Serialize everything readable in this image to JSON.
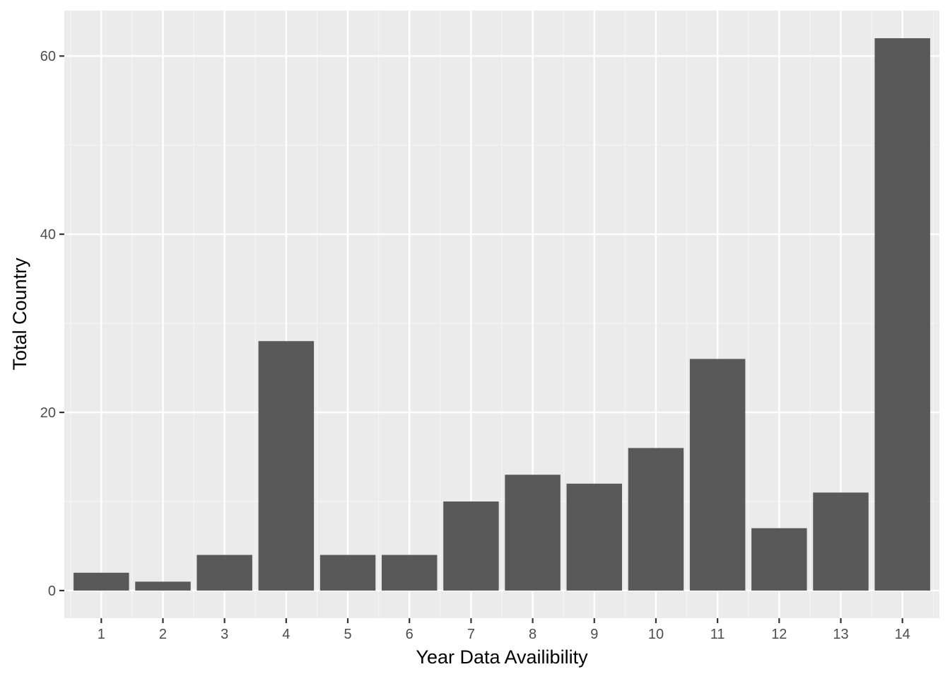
{
  "chart_data": {
    "type": "bar",
    "title": "",
    "xlabel": "Year Data Availibility",
    "ylabel": "Total Country",
    "categories": [
      "1",
      "2",
      "3",
      "4",
      "5",
      "6",
      "7",
      "8",
      "9",
      "10",
      "11",
      "12",
      "13",
      "14"
    ],
    "values": [
      2,
      1,
      4,
      28,
      4,
      4,
      10,
      13,
      12,
      16,
      26,
      7,
      11,
      62
    ],
    "ylim": [
      -3.1,
      65.1
    ],
    "y_ticks": [
      "0",
      "20",
      "40",
      "60"
    ],
    "grid": true,
    "legend": "none",
    "colors": {
      "bar": "#595959",
      "panel": "#ebebeb",
      "grid_major": "#ffffff",
      "grid_minor": "#f5f5f5"
    }
  }
}
